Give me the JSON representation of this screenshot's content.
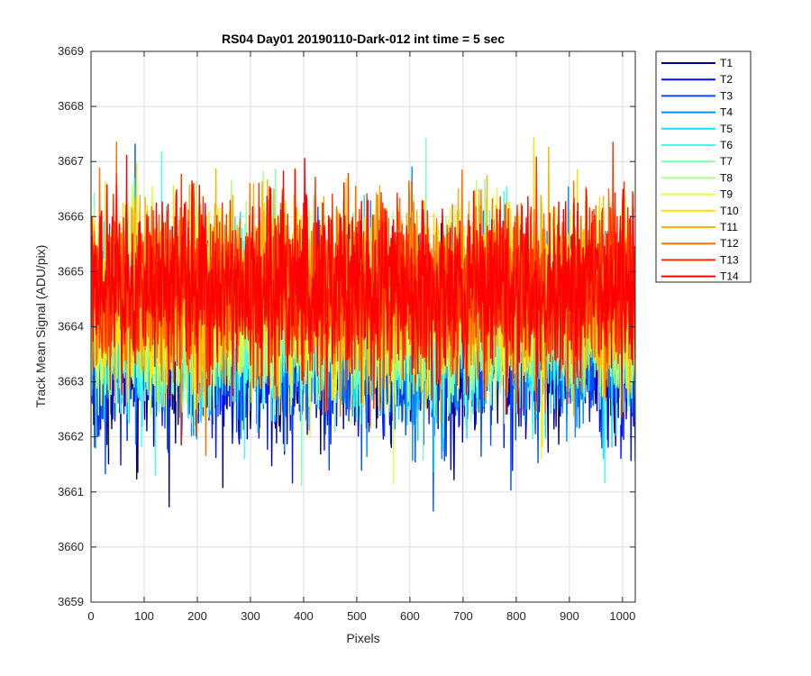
{
  "chart_data": {
    "type": "line",
    "title": "RS04 Day01 20190110-Dark-012 int time = 5 sec",
    "xlabel": "Pixels",
    "ylabel": "Track Mean Signal (ADU/pix)",
    "xlim": [
      0,
      1024
    ],
    "ylim": [
      3659,
      3669
    ],
    "xticks": [
      0,
      100,
      200,
      300,
      400,
      500,
      600,
      700,
      800,
      900,
      1000
    ],
    "yticks": [
      3659,
      3660,
      3661,
      3662,
      3663,
      3664,
      3665,
      3666,
      3667,
      3668,
      3669
    ],
    "grid": true,
    "legend_position": "outside-top-right",
    "x": {
      "start": 1,
      "end": 1024,
      "step": 1
    },
    "series": [
      {
        "name": "T1",
        "color": "#00008f",
        "mean": 3663.5,
        "amplitude": 1.9
      },
      {
        "name": "T2",
        "color": "#0010ff",
        "mean": 3663.6,
        "amplitude": 1.9
      },
      {
        "name": "T3",
        "color": "#0050ff",
        "mean": 3663.8,
        "amplitude": 1.9
      },
      {
        "name": "T4",
        "color": "#0090ff",
        "mean": 3663.9,
        "amplitude": 1.9
      },
      {
        "name": "T5",
        "color": "#10e0ff",
        "mean": 3664.0,
        "amplitude": 1.9
      },
      {
        "name": "T6",
        "color": "#40ffef",
        "mean": 3664.1,
        "amplitude": 1.9
      },
      {
        "name": "T7",
        "color": "#80ffb0",
        "mean": 3664.2,
        "amplitude": 1.9
      },
      {
        "name": "T8",
        "color": "#b0ff80",
        "mean": 3664.3,
        "amplitude": 1.9
      },
      {
        "name": "T9",
        "color": "#dfff40",
        "mean": 3664.4,
        "amplitude": 1.9
      },
      {
        "name": "T10",
        "color": "#ffe000",
        "mean": 3664.5,
        "amplitude": 1.9
      },
      {
        "name": "T11",
        "color": "#ffb000",
        "mean": 3664.6,
        "amplitude": 1.9
      },
      {
        "name": "T12",
        "color": "#ff7000",
        "mean": 3664.7,
        "amplitude": 1.9
      },
      {
        "name": "T13",
        "color": "#ff3000",
        "mean": 3664.7,
        "amplitude": 1.9
      },
      {
        "name": "T14",
        "color": "#ff0000",
        "mean": 3664.7,
        "amplitude": 1.9
      }
    ]
  }
}
